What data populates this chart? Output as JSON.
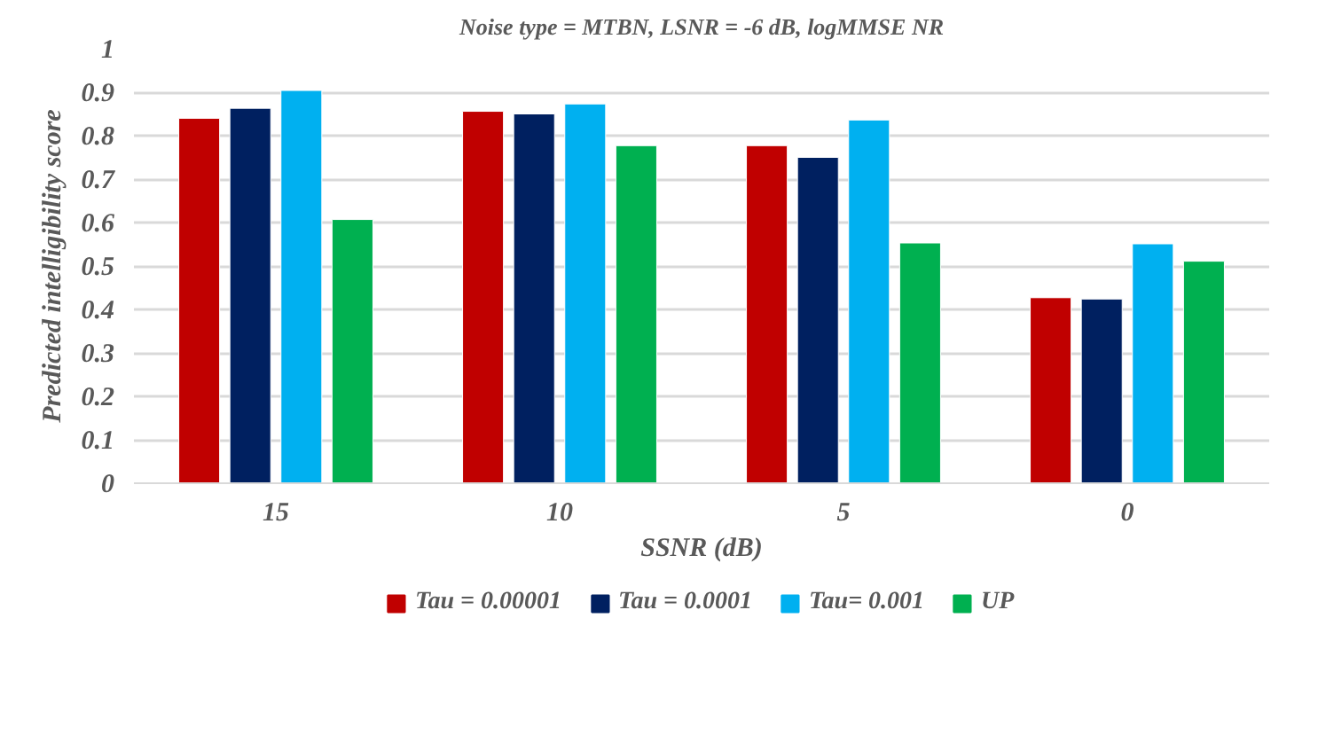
{
  "chart_data": {
    "type": "bar",
    "title": "Noise type = MTBN, LSNR = -6 dB, logMMSE NR",
    "xlabel": "SSNR (dB)",
    "ylabel": "Predicted intelligibility score",
    "categories": [
      "15",
      "10",
      "5",
      "0"
    ],
    "series": [
      {
        "name": "Tau = 0.00001",
        "color": "#c00000",
        "values": [
          0.84,
          0.856,
          0.777,
          0.427
        ]
      },
      {
        "name": "Tau = 0.0001",
        "color": "#002060",
        "values": [
          0.863,
          0.85,
          0.75,
          0.424
        ]
      },
      {
        "name": "Tau= 0.001",
        "color": "#00b0f0",
        "values": [
          0.904,
          0.873,
          0.836,
          0.551
        ]
      },
      {
        "name": "UP",
        "color": "#00b050",
        "values": [
          0.607,
          0.777,
          0.553,
          0.511
        ]
      }
    ],
    "ylim": [
      0,
      1
    ],
    "yticks": [
      0,
      0.1,
      0.2,
      0.3,
      0.4,
      0.5,
      0.6,
      0.7,
      0.8,
      0.9,
      1
    ],
    "grid": "y",
    "legend": "bottom"
  }
}
